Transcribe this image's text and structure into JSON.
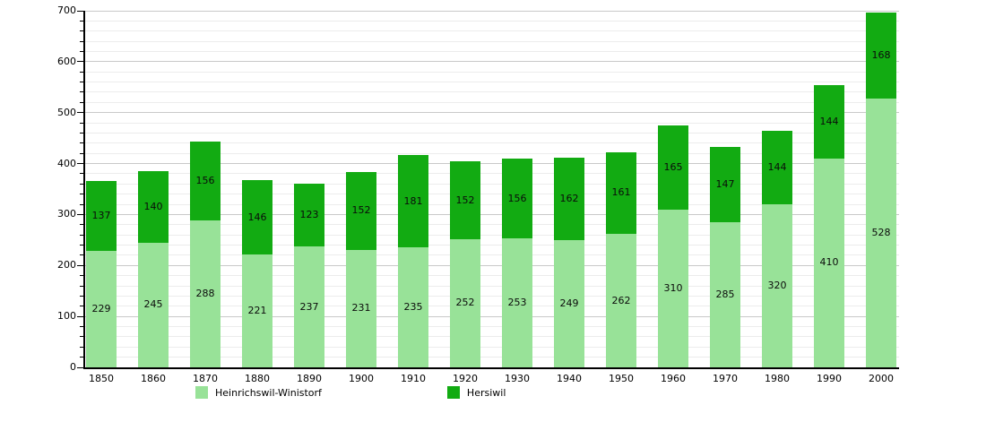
{
  "chart_data": {
    "type": "bar",
    "stacked": true,
    "title": "",
    "xlabel": "",
    "ylabel": "",
    "categories": [
      "1850",
      "1860",
      "1870",
      "1880",
      "1890",
      "1900",
      "1910",
      "1920",
      "1930",
      "1940",
      "1950",
      "1960",
      "1970",
      "1980",
      "1990",
      "2000"
    ],
    "series": [
      {
        "name": "Heinrichswil-Winistorf",
        "color": "#98E298",
        "values": [
          229,
          245,
          288,
          221,
          237,
          231,
          235,
          252,
          253,
          249,
          262,
          310,
          285,
          320,
          410,
          528
        ]
      },
      {
        "name": "Hersiwil",
        "color": "#12AB12",
        "values": [
          137,
          140,
          156,
          146,
          123,
          152,
          181,
          152,
          156,
          162,
          161,
          165,
          147,
          144,
          144,
          168
        ]
      }
    ],
    "totals": [
      366,
      385,
      444,
      367,
      360,
      383,
      416,
      404,
      409,
      411,
      423,
      475,
      432,
      464,
      554,
      696
    ],
    "ylim": [
      0,
      700
    ],
    "y_major_step": 100,
    "y_minor_step": 20,
    "y_tick_labels": [
      "0",
      "100",
      "200",
      "300",
      "400",
      "500",
      "600",
      "700"
    ],
    "grid": true,
    "legend_position": "bottom",
    "value_labels_shown": true,
    "colors": {
      "background": "#ffffff",
      "axis": "#000000",
      "major_gridline": "#c9c9c9",
      "minor_gridline": "#ececec",
      "bar_label_text": "#0b0b0b"
    }
  }
}
